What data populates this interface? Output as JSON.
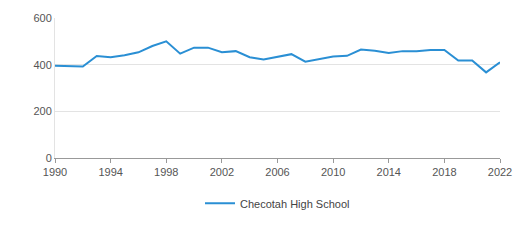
{
  "chart_data": {
    "type": "line",
    "x": [
      1990,
      1991,
      1992,
      1993,
      1994,
      1995,
      1996,
      1997,
      1998,
      1999,
      2000,
      2001,
      2002,
      2003,
      2004,
      2005,
      2006,
      2007,
      2008,
      2009,
      2010,
      2011,
      2012,
      2013,
      2014,
      2015,
      2016,
      2017,
      2018,
      2019,
      2020,
      2021,
      2022
    ],
    "series": [
      {
        "name": "Checotah High School",
        "color": "#2a8fd4",
        "values": [
          395,
          395,
          392,
          437,
          432,
          440,
          453,
          480,
          500,
          447,
          473,
          473,
          453,
          458,
          432,
          422,
          435,
          445,
          413,
          425,
          435,
          438,
          465,
          460,
          450,
          458,
          458,
          463,
          463,
          418,
          418,
          367,
          410
        ]
      }
    ],
    "xlim": [
      1990,
      2022
    ],
    "xticks": [
      1990,
      1994,
      1998,
      2002,
      2006,
      2010,
      2014,
      2018,
      2022
    ],
    "ylim": [
      0,
      600
    ],
    "yticks": [
      0,
      200,
      400,
      600
    ],
    "grid": true,
    "legend": "bottom"
  }
}
